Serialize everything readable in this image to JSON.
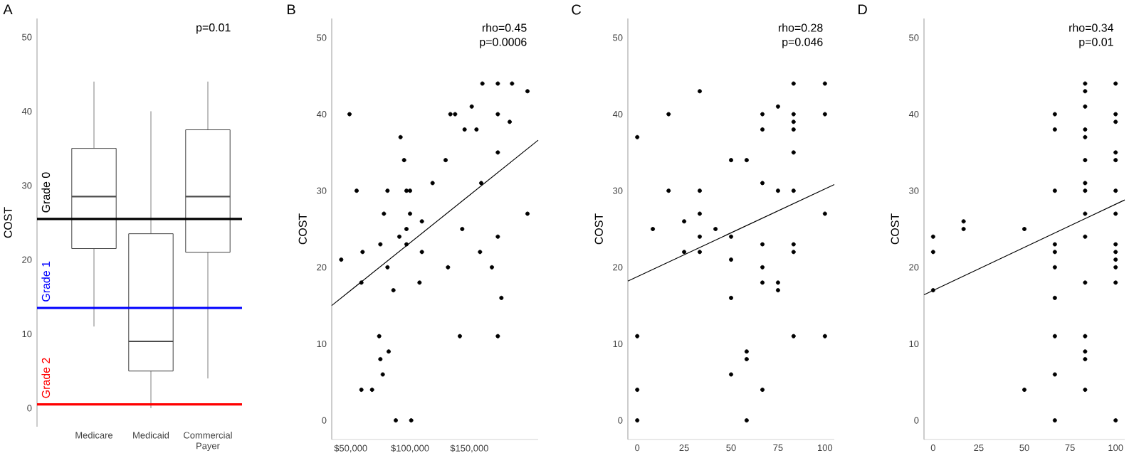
{
  "chart_data": [
    {
      "type": "box",
      "title": "A",
      "ylabel": "COST",
      "categories": [
        "Medicare",
        "Medicaid",
        "Commercial Payer"
      ],
      "boxes": [
        {
          "low": 11,
          "q1": 21.5,
          "median": 28.5,
          "q3": 35,
          "high": 44
        },
        {
          "low": 0,
          "q1": 5,
          "median": 9,
          "q3": 23.5,
          "high": 40
        },
        {
          "low": 4,
          "q1": 21,
          "median": 28.5,
          "q3": 37.5,
          "high": 44
        }
      ],
      "ylim": [
        -2.5,
        52.5
      ],
      "yticks": [
        0,
        10,
        20,
        30,
        40,
        50
      ],
      "ref_lines": [
        {
          "axis": "y",
          "value": 25.5,
          "label": "Grade 0",
          "color": "#000000"
        },
        {
          "axis": "y",
          "value": 13.5,
          "label": "Grade 1",
          "color": "#0000ff"
        },
        {
          "axis": "y",
          "value": 0.5,
          "label": "Grade 2",
          "color": "#ff0000"
        }
      ],
      "annotations": [
        "p=0.01"
      ]
    },
    {
      "type": "scatter",
      "title": "B",
      "ylabel": "COST",
      "series": [
        {
          "type": "scatter",
          "color": "#000000",
          "x": [
            42000,
            49000,
            55000,
            59000,
            59000,
            60000,
            68000,
            74000,
            75000,
            75000,
            77000,
            78000,
            81000,
            81000,
            82000,
            86000,
            88000,
            91000,
            92000,
            95000,
            97000,
            97000,
            97000,
            100000,
            100000,
            101000,
            110000,
            108000,
            110000,
            119000,
            130000,
            132000,
            134000,
            138000,
            142000,
            144000,
            146000,
            152000,
            156000,
            159000,
            160000,
            161000,
            169000,
            174000,
            174000,
            174000,
            174000,
            174000,
            177000,
            184000,
            186000,
            199000,
            199000
          ],
          "values": [
            21,
            40,
            30,
            4,
            18,
            22,
            4,
            11,
            23,
            8,
            6,
            27,
            20,
            30,
            9,
            17,
            0,
            24,
            37,
            34,
            30,
            25,
            23,
            27,
            30,
            0,
            26,
            18,
            22,
            31,
            34,
            20,
            40,
            40,
            11,
            25,
            38,
            41,
            38,
            22,
            31,
            44,
            20,
            44,
            40,
            35,
            24,
            11,
            16,
            39,
            44,
            43,
            27
          ]
        },
        {
          "type": "line",
          "color": "#000000",
          "x": [
            34000,
            208000
          ],
          "values": [
            15,
            36.6
          ]
        }
      ],
      "xlim": [
        34000,
        208000
      ],
      "xticks": [
        {
          "value": 50000,
          "label": "$50,000"
        },
        {
          "value": 100000,
          "label": "$100,000"
        },
        {
          "value": 150000,
          "label": "$150,000"
        }
      ],
      "ylim": [
        -2.5,
        52.5
      ],
      "yticks": [
        0,
        10,
        20,
        30,
        40,
        50
      ],
      "annotations": [
        "rho=0.45",
        "p=0.0006"
      ]
    },
    {
      "type": "scatter",
      "title": "C",
      "ylabel": "COST",
      "series": [
        {
          "type": "scatter",
          "color": "#000000",
          "x": [
            0,
            0,
            0,
            0,
            8.3,
            16.7,
            16.7,
            25,
            25,
            33.3,
            33.3,
            33.3,
            33.3,
            33.3,
            41.7,
            50,
            50,
            50,
            50,
            50,
            58.3,
            58.3,
            58.3,
            58.3,
            66.7,
            66.7,
            66.7,
            66.7,
            66.7,
            66.7,
            66.7,
            75,
            75,
            75,
            75,
            83.3,
            83.3,
            83.3,
            83.3,
            83.3,
            83.3,
            83.3,
            83.3,
            83.3,
            100,
            100,
            100,
            100
          ],
          "values": [
            37,
            11,
            4,
            0,
            25,
            40,
            30,
            26,
            22,
            43,
            30,
            27,
            24,
            22,
            25,
            34,
            24,
            21,
            16,
            6,
            34,
            9,
            8,
            0,
            40,
            38,
            31,
            23,
            20,
            18,
            4,
            41,
            30,
            18,
            17,
            44,
            40,
            39,
            38,
            35,
            30,
            23,
            22,
            11,
            44,
            40,
            27,
            11
          ]
        },
        {
          "type": "line",
          "color": "#000000",
          "x": [
            -5,
            105
          ],
          "values": [
            18.2,
            30.8
          ]
        }
      ],
      "xlim": [
        -5,
        105
      ],
      "xticks": [
        0,
        25,
        50,
        75,
        100
      ],
      "ylim": [
        -2.5,
        52.5
      ],
      "yticks": [
        0,
        10,
        20,
        30,
        40,
        50
      ],
      "annotations": [
        "rho=0.28",
        "p=0.046"
      ]
    },
    {
      "type": "scatter",
      "title": "D",
      "ylabel": "COST",
      "series": [
        {
          "type": "scatter",
          "color": "#000000",
          "x": [
            0,
            0,
            0,
            16.7,
            16.7,
            50,
            50,
            66.7,
            66.7,
            66.7,
            66.7,
            66.7,
            66.7,
            66.7,
            66.7,
            66.7,
            66.7,
            83.3,
            83.3,
            83.3,
            83.3,
            83.3,
            83.3,
            83.3,
            83.3,
            83.3,
            83.3,
            83.3,
            83.3,
            83.3,
            83.3,
            83.3,
            100,
            100,
            100,
            100,
            100,
            100,
            100,
            100,
            100,
            100,
            100,
            100,
            100
          ],
          "values": [
            24,
            22,
            17,
            26,
            25,
            25,
            4,
            40,
            38,
            30,
            23,
            22,
            20,
            16,
            11,
            6,
            0,
            44,
            43,
            41,
            38,
            37,
            34,
            31,
            30,
            27,
            24,
            18,
            11,
            9,
            8,
            4,
            44,
            40,
            39,
            35,
            34,
            30,
            27,
            23,
            22,
            21,
            20,
            18,
            0
          ]
        },
        {
          "type": "line",
          "color": "#000000",
          "x": [
            -5,
            105
          ],
          "values": [
            16.4,
            28.8
          ]
        }
      ],
      "xlim": [
        -5,
        105
      ],
      "xticks": [
        0,
        25,
        50,
        75,
        100
      ],
      "ylim": [
        -2.5,
        52.5
      ],
      "yticks": [
        0,
        10,
        20,
        30,
        40,
        50
      ],
      "annotations": [
        "rho=0.34",
        "p=0.01"
      ]
    }
  ]
}
